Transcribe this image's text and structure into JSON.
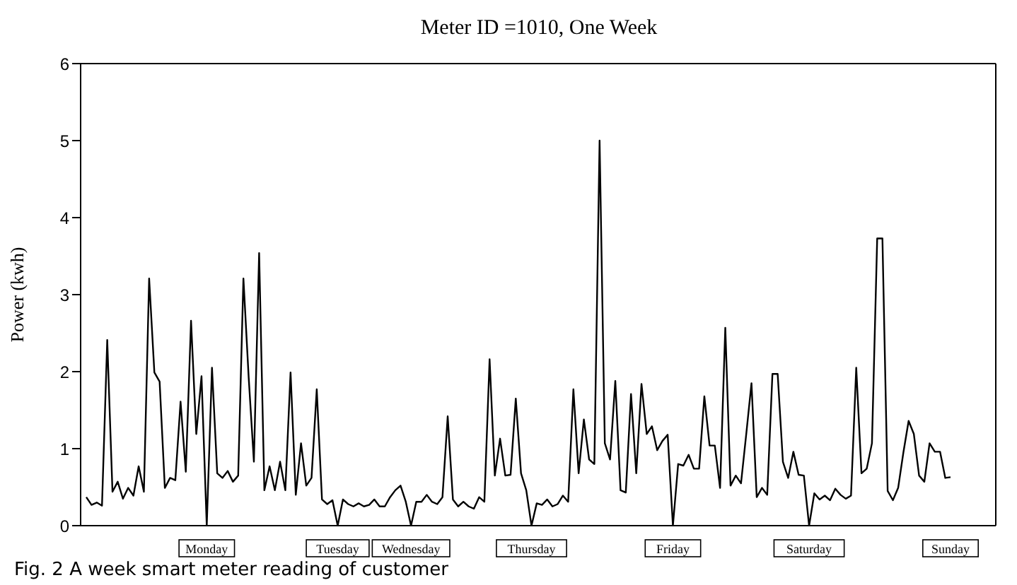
{
  "chart_data": {
    "type": "line",
    "title": "Meter ID =1010, One Week",
    "ylabel": "Power (kwh)",
    "annotations": [
      "Fig. 2  A week smart meter reading of customer"
    ],
    "categories": [
      null,
      null,
      null,
      null,
      null,
      null,
      null,
      null,
      null,
      null,
      null,
      null,
      null,
      null,
      null,
      null,
      null,
      null,
      null,
      null,
      null,
      null,
      null,
      "Monday",
      null,
      null,
      null,
      null,
      null,
      null,
      null,
      null,
      null,
      null,
      null,
      null,
      null,
      null,
      null,
      null,
      null,
      null,
      null,
      null,
      null,
      null,
      null,
      null,
      "Tuesday",
      null,
      null,
      null,
      null,
      null,
      null,
      null,
      null,
      null,
      null,
      null,
      null,
      null,
      "Wednesday",
      null,
      null,
      null,
      null,
      null,
      null,
      null,
      null,
      null,
      null,
      null,
      null,
      null,
      null,
      null,
      null,
      null,
      null,
      null,
      null,
      null,
      null,
      "Thursday",
      null,
      null,
      null,
      null,
      null,
      null,
      null,
      null,
      null,
      null,
      null,
      null,
      null,
      null,
      null,
      null,
      null,
      null,
      null,
      null,
      null,
      null,
      null,
      null,
      null,
      null,
      "Friday",
      null,
      null,
      null,
      null,
      null,
      null,
      null,
      null,
      null,
      null,
      null,
      null,
      null,
      null,
      null,
      null,
      null,
      null,
      null,
      null,
      null,
      null,
      null,
      null,
      null,
      "Saturday",
      null,
      null,
      null,
      null,
      null,
      null,
      null,
      null,
      null,
      null,
      null,
      null,
      null,
      null,
      null,
      null,
      null,
      null,
      null,
      null,
      null,
      null,
      null,
      null,
      null,
      null,
      "Sunday"
    ],
    "series": [
      {
        "color": "#000000",
        "values": [
          0.37,
          0.27,
          0.3,
          0.26,
          2.41,
          0.44,
          0.57,
          0.35,
          0.49,
          0.39,
          0.77,
          0.44,
          3.21,
          1.99,
          1.87,
          0.49,
          0.62,
          0.59,
          1.61,
          0.7,
          2.66,
          1.19,
          1.94,
          0,
          2.05,
          0.68,
          0.62,
          0.71,
          0.57,
          0.65,
          3.21,
          1.93,
          0.83,
          3.54,
          0.46,
          0.77,
          0.46,
          0.83,
          0.46,
          1.99,
          0.4,
          1.07,
          0.52,
          0.62,
          1.77,
          0.34,
          0.28,
          0.33,
          0,
          0.34,
          0.28,
          0.25,
          0.29,
          0.25,
          0.27,
          0.34,
          0.25,
          0.25,
          0.37,
          0.46,
          0.52,
          0.31,
          0,
          0.31,
          0.31,
          0.4,
          0.31,
          0.28,
          0.37,
          1.42,
          0.34,
          0.25,
          0.31,
          0.25,
          0.22,
          0.37,
          0.31,
          2.16,
          0.65,
          1.13,
          0.65,
          0.66,
          1.65,
          0.68,
          0.46,
          0,
          0.29,
          0.27,
          0.34,
          0.25,
          0.28,
          0.39,
          0.31,
          1.77,
          0.68,
          1.38,
          0.86,
          0.8,
          5.0,
          1.07,
          0.86,
          1.88,
          0.46,
          0.43,
          1.71,
          0.68,
          1.84,
          1.19,
          1.29,
          0.98,
          1.1,
          1.18,
          0,
          0.8,
          0.78,
          0.92,
          0.74,
          0.74,
          1.68,
          1.04,
          1.04,
          0.49,
          2.57,
          0.52,
          0.65,
          0.55,
          1.19,
          1.85,
          0.37,
          0.49,
          0.4,
          1.97,
          1.97,
          0.83,
          0.62,
          0.96,
          0.66,
          0.65,
          0,
          0.42,
          0.34,
          0.39,
          0.33,
          0.48,
          0.4,
          0.35,
          0.39,
          2.05,
          0.68,
          0.74,
          1.07,
          3.73,
          3.73,
          0.45,
          0.33,
          0.49,
          0.95,
          1.36,
          1.19,
          0.65,
          0.57,
          1.07,
          0.96,
          0.96,
          0.62,
          0.63
        ]
      }
    ],
    "ylim": [
      0,
      6
    ],
    "yticks": [
      0,
      1,
      2,
      3,
      4,
      5,
      6
    ],
    "grid": false,
    "legend": false,
    "marker": "none",
    "line_style": "solid"
  }
}
